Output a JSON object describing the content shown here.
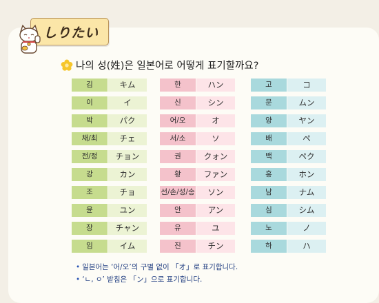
{
  "tag": {
    "label": "しりたい"
  },
  "question": "나의 성(姓)은 일본어로 어떻게 표기할까요?",
  "columns": [
    {
      "theme": "green",
      "rows": [
        {
          "ko": "김",
          "ja": "キム"
        },
        {
          "ko": "이",
          "ja": "イ"
        },
        {
          "ko": "박",
          "ja": "パク"
        },
        {
          "ko": "채/최",
          "ja": "チェ"
        },
        {
          "ko": "전/정",
          "ja": "チョン"
        },
        {
          "ko": "강",
          "ja": "カン"
        },
        {
          "ko": "조",
          "ja": "チョ"
        },
        {
          "ko": "윤",
          "ja": "ユン"
        },
        {
          "ko": "장",
          "ja": "チャン"
        },
        {
          "ko": "임",
          "ja": "イム"
        }
      ]
    },
    {
      "theme": "pink",
      "rows": [
        {
          "ko": "한",
          "ja": "ハン"
        },
        {
          "ko": "신",
          "ja": "シン"
        },
        {
          "ko": "어/오",
          "ja": "オ"
        },
        {
          "ko": "서/소",
          "ja": "ソ"
        },
        {
          "ko": "권",
          "ja": "クォン"
        },
        {
          "ko": "황",
          "ja": "ファン"
        },
        {
          "ko": "선/손/성/송",
          "ja": "ソン"
        },
        {
          "ko": "안",
          "ja": "アン"
        },
        {
          "ko": "유",
          "ja": "ユ"
        },
        {
          "ko": "진",
          "ja": "チン"
        }
      ]
    },
    {
      "theme": "teal",
      "rows": [
        {
          "ko": "고",
          "ja": "コ"
        },
        {
          "ko": "문",
          "ja": "ムン"
        },
        {
          "ko": "양",
          "ja": "ヤン"
        },
        {
          "ko": "배",
          "ja": "ペ"
        },
        {
          "ko": "백",
          "ja": "ペク"
        },
        {
          "ko": "홍",
          "ja": "ホン"
        },
        {
          "ko": "남",
          "ja": "ナム"
        },
        {
          "ko": "심",
          "ja": "シム"
        },
        {
          "ko": "노",
          "ja": "ノ"
        },
        {
          "ko": "하",
          "ja": "ハ"
        }
      ]
    }
  ],
  "notes": [
    "일본어는 ‘어/오’의 구별 없이 「オ」로 표기합니다.",
    "‘ㄴ, ㅇ’ 받침은 「ン」으로 표기합니다."
  ],
  "colors": {
    "green_korean": "#c6dc8e",
    "green_japanese": "#ecf3d4",
    "pink_korean": "#f4c2cb",
    "pink_japanese": "#fde4e8",
    "teal_korean": "#a9d9dd",
    "teal_japanese": "#dcf0f2",
    "note_text": "#1f3c80"
  },
  "icons": {
    "mascot": "lucky-cat-icon",
    "question_marker": "flower-icon",
    "bullet": "bullet-dot"
  }
}
